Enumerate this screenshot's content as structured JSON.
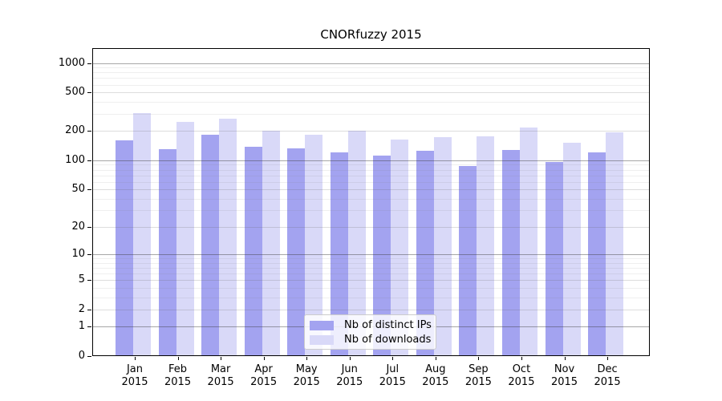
{
  "chart_data": {
    "type": "bar",
    "title": "CNORfuzzy 2015",
    "scale": "log1p",
    "grid": true,
    "legend_position": "lower-center",
    "categories": [
      "Jan",
      "Feb",
      "Mar",
      "Apr",
      "May",
      "Jun",
      "Jul",
      "Aug",
      "Sep",
      "Oct",
      "Nov",
      "Dec"
    ],
    "year": "2015",
    "series": [
      {
        "name": "Nb of distinct IPs",
        "color": "#a3a3f0",
        "values": [
          160,
          130,
          184,
          139,
          134,
          120,
          111,
          125,
          88,
          129,
          96,
          121
        ]
      },
      {
        "name": "Nb of downloads",
        "color": "#d9d9f8",
        "values": [
          305,
          248,
          267,
          201,
          185,
          200,
          163,
          172,
          175,
          216,
          152,
          195
        ]
      }
    ],
    "y_ticks": [
      0,
      1,
      2,
      5,
      10,
      20,
      50,
      100,
      200,
      500,
      1000
    ],
    "y_minor_gridlines": [
      3,
      4,
      6,
      7,
      8,
      9,
      30,
      40,
      60,
      70,
      80,
      90,
      300,
      400,
      600,
      700,
      800,
      900
    ],
    "ylim": [
      0,
      1420
    ]
  }
}
